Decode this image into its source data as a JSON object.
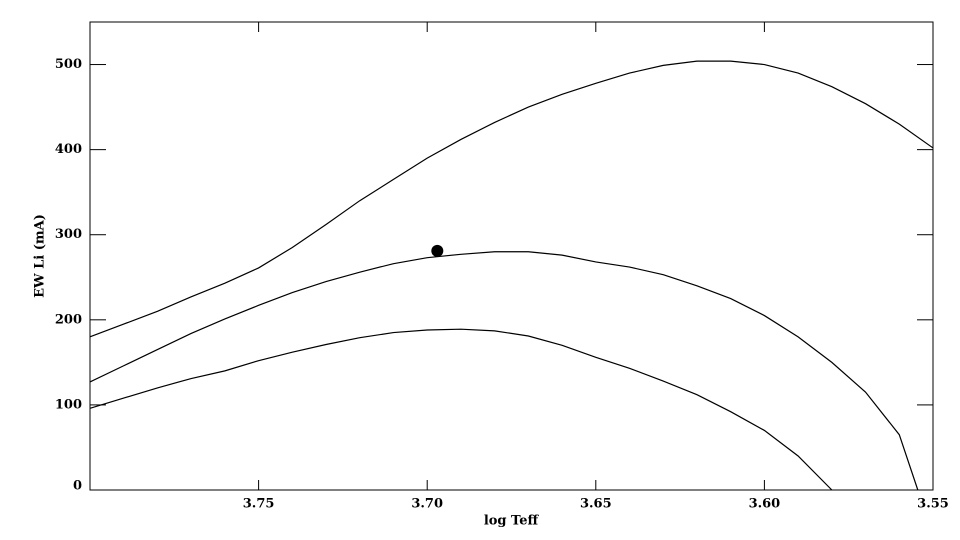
{
  "chart_data": {
    "type": "line",
    "xlabel": "log Teff",
    "ylabel": "EW Li (mA)",
    "xlim": [
      3.8,
      3.55
    ],
    "ylim": [
      0,
      550
    ],
    "xticks": [
      3.75,
      {
        "value": 3.7,
        "label": "3.70"
      },
      3.65,
      {
        "value": 3.6,
        "label": "3.60"
      },
      3.55
    ],
    "yticks": [
      0,
      100,
      200,
      300,
      400,
      500
    ],
    "series": [
      {
        "color": "#000000",
        "x": [
          3.8,
          3.79,
          3.78,
          3.77,
          3.76,
          3.75,
          3.74,
          3.73,
          3.72,
          3.71,
          3.7,
          3.69,
          3.68,
          3.67,
          3.66,
          3.65,
          3.64,
          3.63,
          3.62,
          3.61,
          3.6,
          3.59,
          3.58,
          3.57,
          3.56,
          3.55
        ],
        "values": [
          180,
          195,
          210,
          227,
          243,
          261,
          285,
          312,
          340,
          365,
          390,
          412,
          432,
          450,
          465,
          478,
          490,
          499,
          504,
          504,
          500,
          490,
          474,
          454,
          430,
          402
        ]
      },
      {
        "color": "#000000",
        "x": [
          3.8,
          3.79,
          3.78,
          3.77,
          3.76,
          3.75,
          3.74,
          3.73,
          3.72,
          3.71,
          3.7,
          3.69,
          3.68,
          3.67,
          3.66,
          3.65,
          3.64,
          3.63,
          3.62,
          3.61,
          3.6,
          3.59,
          3.58,
          3.57,
          3.56,
          3.5545
        ],
        "values": [
          127,
          146,
          165,
          184,
          201,
          217,
          232,
          245,
          256,
          266,
          273,
          277,
          280,
          280,
          276,
          268,
          262,
          253,
          240,
          225,
          205,
          180,
          150,
          115,
          65,
          0
        ]
      },
      {
        "color": "#000000",
        "x": [
          3.8,
          3.79,
          3.78,
          3.77,
          3.76,
          3.75,
          3.74,
          3.73,
          3.72,
          3.71,
          3.7,
          3.69,
          3.68,
          3.67,
          3.66,
          3.65,
          3.64,
          3.63,
          3.62,
          3.61,
          3.6,
          3.59,
          3.58
        ],
        "values": [
          96,
          108,
          120,
          131,
          140,
          152,
          162,
          171,
          179,
          185,
          188,
          189,
          187,
          181,
          170,
          156,
          143,
          128,
          112,
          92,
          70,
          40,
          0
        ]
      },
      {
        "color": "#000000",
        "type": "scatter",
        "x": [
          3.697
        ],
        "values": [
          281
        ]
      }
    ]
  }
}
